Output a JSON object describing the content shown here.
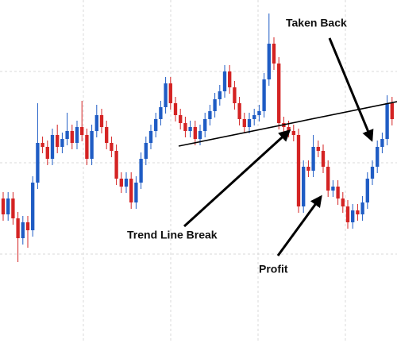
{
  "chart_data": {
    "type": "candlestick",
    "annotations": [
      "Taken Back",
      "Trend Line Break",
      "Profit"
    ],
    "up_color": "#1f5cc4",
    "down_color": "#d42323",
    "ylim": [
      0,
      432
    ],
    "open": [
      182,
      162,
      182,
      157,
      132,
      152,
      142,
      202,
      252,
      247,
      232,
      262,
      247,
      257,
      267,
      252,
      272,
      262,
      232,
      267,
      287,
      272,
      252,
      242,
      207,
      197,
      207,
      177,
      202,
      232,
      252,
      267,
      282,
      297,
      327,
      302,
      287,
      277,
      267,
      272,
      257,
      267,
      282,
      292,
      307,
      317,
      342,
      322,
      302,
      282,
      272,
      282,
      287,
      292,
      332,
      377,
      352,
      277,
      272,
      267,
      262,
      172,
      222,
      217,
      247,
      242,
      222,
      192,
      197,
      182,
      172,
      152,
      167,
      162,
      177,
      207,
      222,
      247,
      257,
      302
    ],
    "high": [
      190,
      190,
      190,
      165,
      160,
      160,
      210,
      302,
      260,
      255,
      270,
      275,
      265,
      290,
      275,
      280,
      305,
      270,
      275,
      300,
      295,
      280,
      260,
      250,
      215,
      215,
      215,
      210,
      240,
      260,
      275,
      290,
      305,
      335,
      335,
      310,
      295,
      285,
      280,
      280,
      275,
      290,
      300,
      315,
      325,
      350,
      350,
      330,
      310,
      290,
      290,
      295,
      300,
      340,
      415,
      385,
      360,
      285,
      280,
      275,
      270,
      230,
      230,
      262,
      255,
      250,
      230,
      205,
      205,
      190,
      180,
      175,
      175,
      185,
      215,
      230,
      255,
      265,
      312,
      310
    ],
    "low": [
      154,
      154,
      149,
      102,
      124,
      120,
      134,
      194,
      239,
      224,
      224,
      239,
      239,
      249,
      244,
      244,
      254,
      224,
      224,
      259,
      264,
      244,
      234,
      199,
      189,
      189,
      169,
      169,
      194,
      224,
      244,
      259,
      274,
      289,
      294,
      279,
      269,
      259,
      259,
      249,
      249,
      259,
      274,
      284,
      299,
      309,
      314,
      294,
      274,
      264,
      264,
      274,
      279,
      284,
      324,
      344,
      269,
      264,
      259,
      254,
      164,
      164,
      209,
      209,
      234,
      214,
      184,
      184,
      174,
      164,
      144,
      144,
      154,
      154,
      169,
      199,
      214,
      239,
      249,
      274
    ],
    "close": [
      162,
      182,
      157,
      132,
      152,
      142,
      202,
      252,
      247,
      232,
      262,
      247,
      257,
      267,
      252,
      272,
      262,
      232,
      267,
      287,
      272,
      252,
      242,
      207,
      197,
      207,
      177,
      202,
      232,
      252,
      267,
      282,
      297,
      327,
      302,
      287,
      277,
      267,
      272,
      257,
      267,
      282,
      292,
      307,
      317,
      342,
      322,
      302,
      282,
      272,
      282,
      287,
      292,
      332,
      377,
      352,
      277,
      272,
      267,
      262,
      172,
      222,
      217,
      247,
      242,
      222,
      192,
      197,
      182,
      172,
      152,
      167,
      162,
      177,
      207,
      222,
      247,
      257,
      302,
      282
    ]
  }
}
